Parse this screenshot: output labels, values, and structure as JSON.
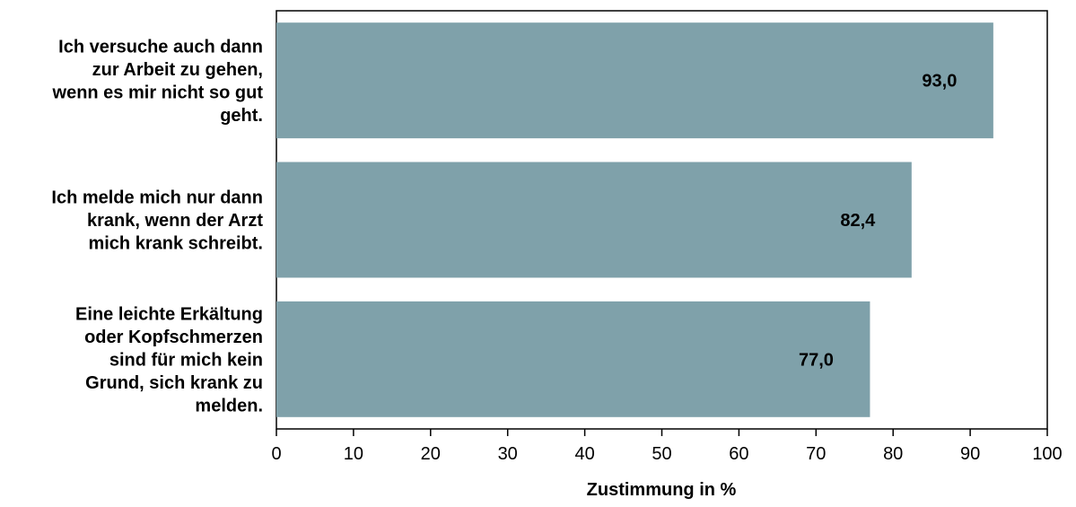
{
  "chart_data": {
    "type": "bar",
    "orientation": "horizontal",
    "categories": [
      [
        "Ich versuche auch dann",
        "zur Arbeit zu gehen,",
        "wenn es mir nicht so gut",
        "geht."
      ],
      [
        "Ich melde mich nur dann",
        "krank, wenn der Arzt",
        "mich krank schreibt."
      ],
      [
        "Eine leichte Erkältung",
        "oder Kopfschmerzen",
        "sind für mich kein",
        "Grund, sich krank zu",
        "melden."
      ]
    ],
    "values": [
      93.0,
      82.4,
      77.0
    ],
    "value_labels": [
      "93,0",
      "82,4",
      "77,0"
    ],
    "title": "",
    "xlabel": "Zustimmung in %",
    "ylabel": "",
    "xlim": [
      0,
      100
    ],
    "x_ticks": [
      0,
      10,
      20,
      30,
      40,
      50,
      60,
      70,
      80,
      90,
      100
    ],
    "grid": false,
    "legend": "none",
    "bar_color": "#7fa1aa"
  }
}
